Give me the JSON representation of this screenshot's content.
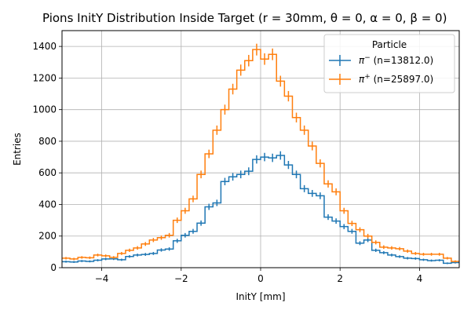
{
  "chart_data": {
    "type": "histogram-step",
    "title": "Pions InitY Distribution Inside Target (r = 30mm, θ = 0, α = 0, β = 0)",
    "xlabel": "InitY [mm]",
    "ylabel": "Entries",
    "xlim": [
      -5,
      5
    ],
    "ylim": [
      0,
      1500
    ],
    "xticks": [
      -4,
      -2,
      0,
      2,
      4
    ],
    "xtick_labels": [
      "−4",
      "−2",
      "0",
      "2",
      "4"
    ],
    "yticks": [
      0,
      200,
      400,
      600,
      800,
      1000,
      1200,
      1400
    ],
    "ytick_labels": [
      "0",
      "200",
      "400",
      "600",
      "800",
      "1000",
      "1200",
      "1400"
    ],
    "grid": true,
    "legend_title": "Particle",
    "legend_location": "upper right",
    "bin_width": 0.2,
    "bin_edges_start": -5,
    "series": [
      {
        "name": "π⁻  (n=13812.0)",
        "label_main": "π",
        "label_sup": "−",
        "label_rest": " (n=13812.0)",
        "color": "#1f77b4",
        "values": [
          38,
          36,
          42,
          40,
          47,
          55,
          56,
          50,
          71,
          80,
          84,
          90,
          112,
          118,
          170,
          205,
          230,
          282,
          385,
          410,
          545,
          575,
          590,
          610,
          685,
          700,
          695,
          710,
          650,
          590,
          500,
          470,
          455,
          320,
          295,
          260,
          230,
          155,
          175,
          110,
          95,
          80,
          70,
          60,
          58,
          50,
          45,
          47,
          28,
          32
        ]
      },
      {
        "name": "π⁺  (n=25897.0)",
        "label_main": "π",
        "label_sup": "+",
        "label_rest": " (n=25897.0)",
        "color": "#ff7f0e",
        "values": [
          60,
          55,
          65,
          63,
          80,
          75,
          65,
          90,
          110,
          125,
          150,
          175,
          190,
          205,
          300,
          360,
          435,
          590,
          720,
          870,
          1000,
          1130,
          1250,
          1310,
          1380,
          1320,
          1350,
          1180,
          1085,
          950,
          870,
          770,
          660,
          530,
          480,
          360,
          280,
          240,
          200,
          160,
          130,
          125,
          120,
          105,
          90,
          85,
          85,
          85,
          60,
          40
        ]
      }
    ]
  }
}
